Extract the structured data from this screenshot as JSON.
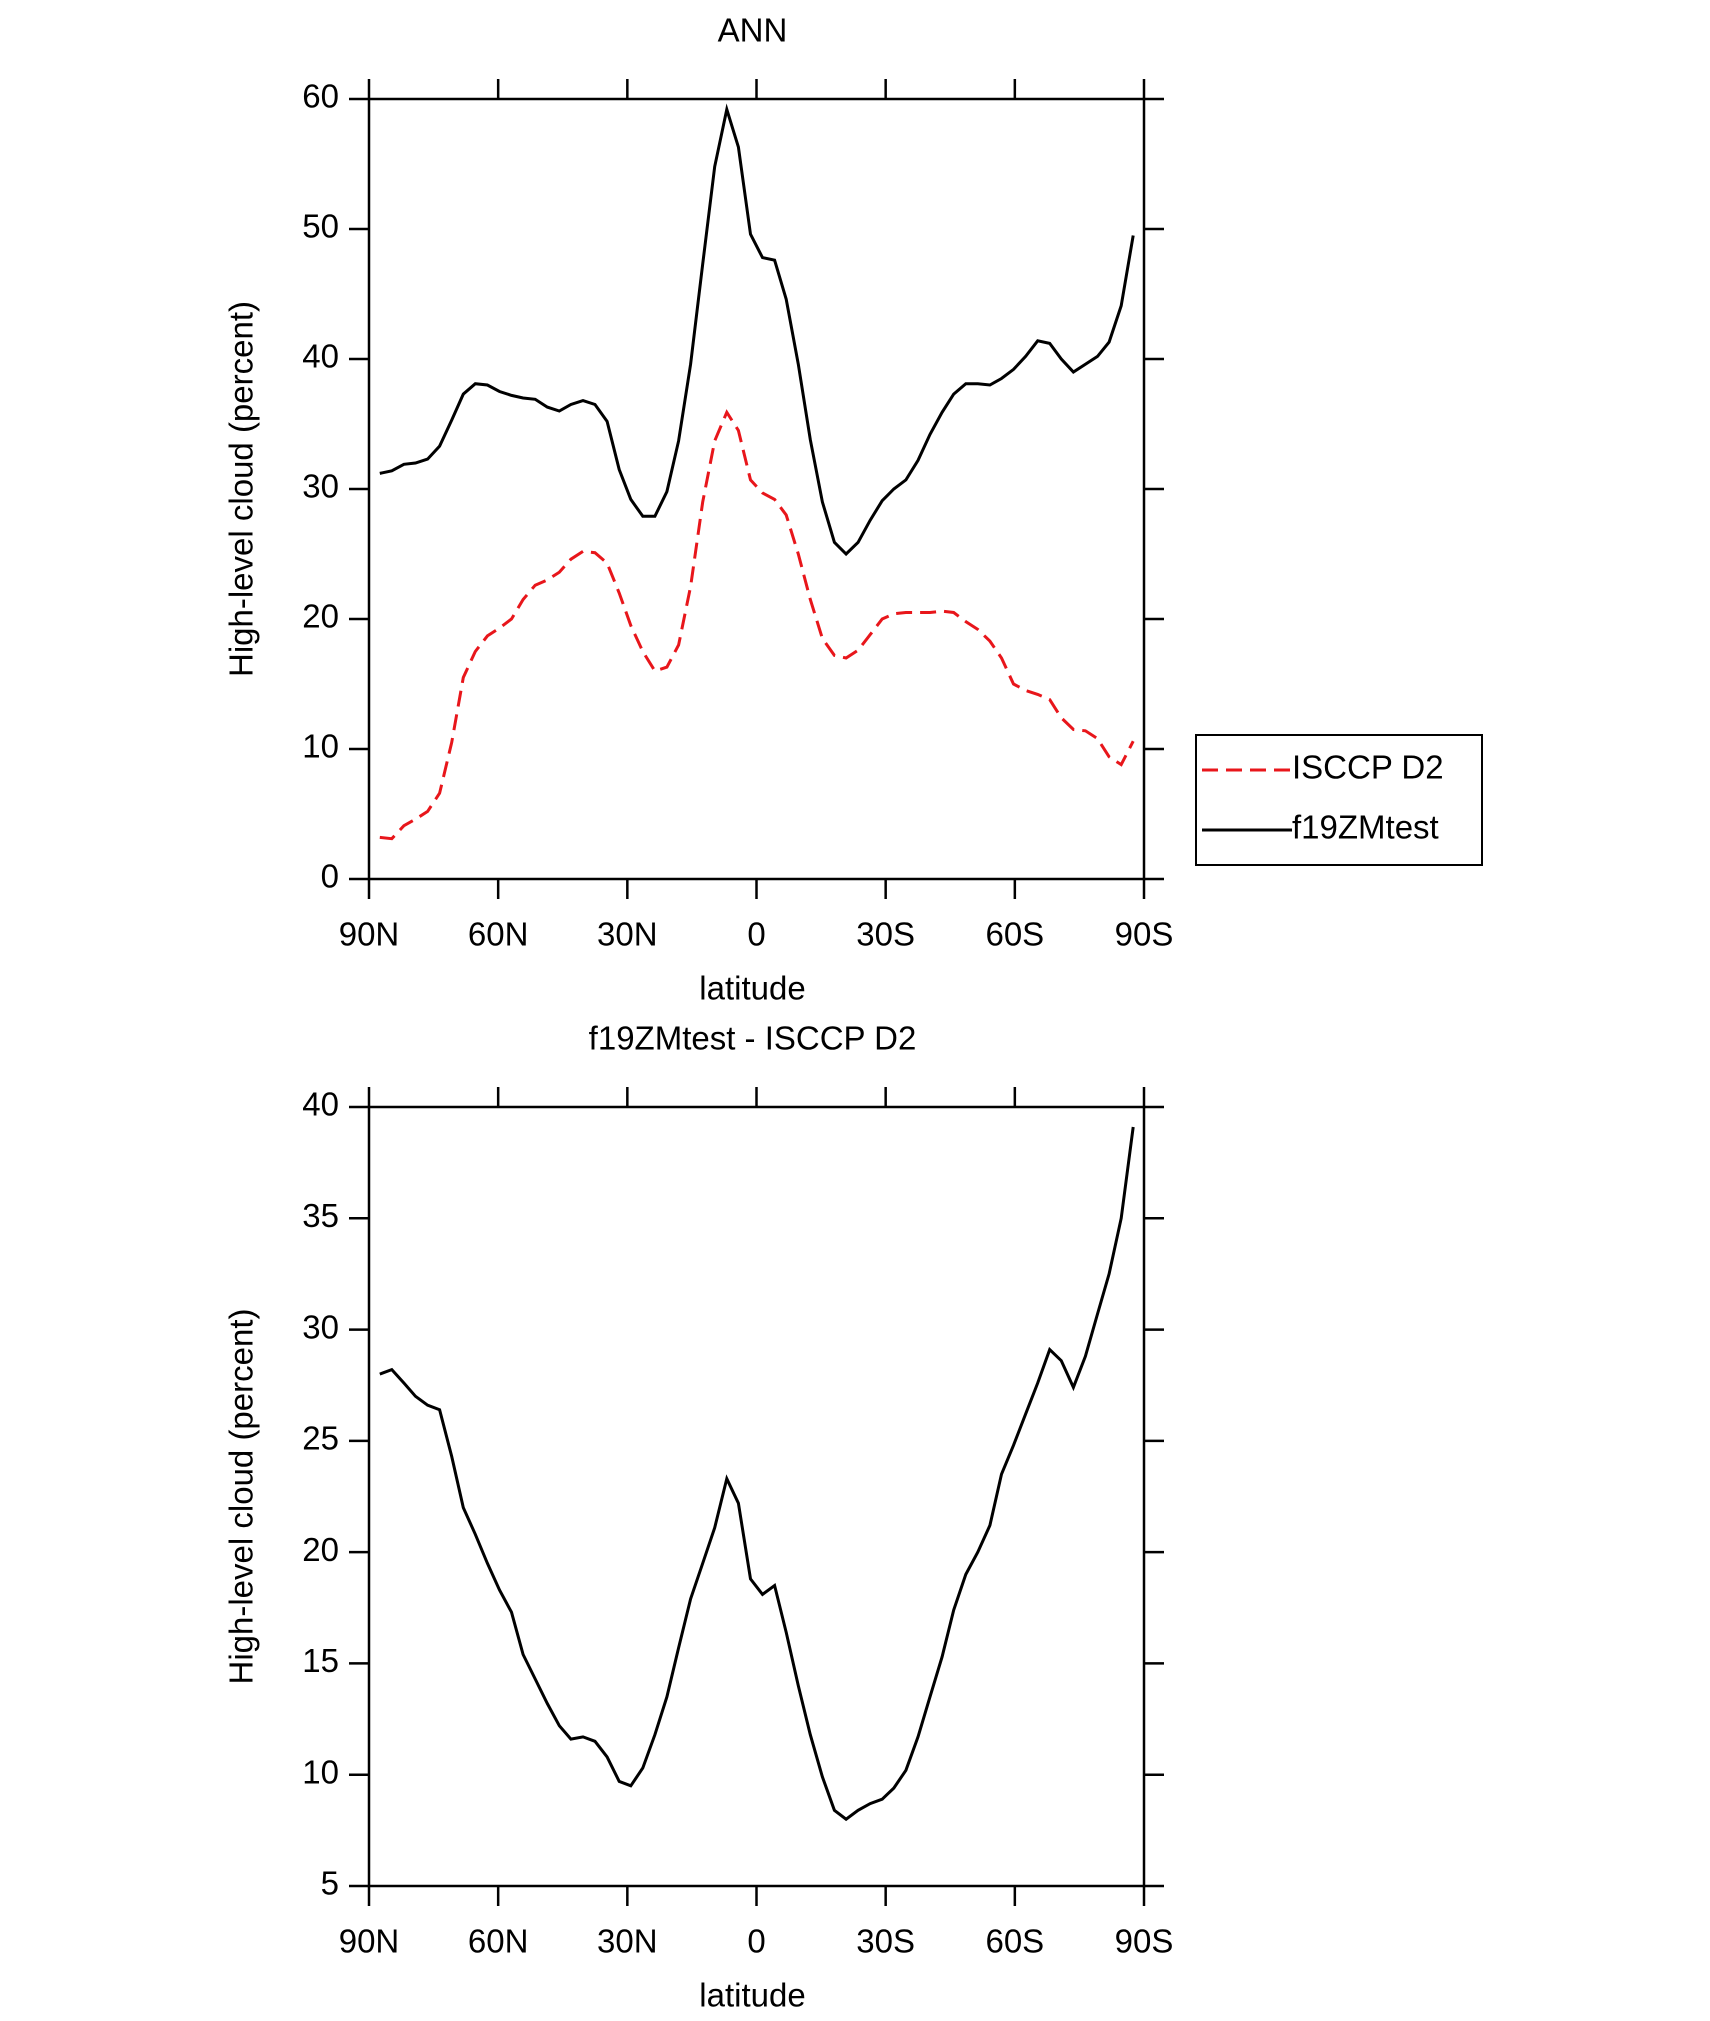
{
  "chart_data": [
    {
      "type": "line",
      "title": "ANN",
      "x_label": "latitude",
      "y_label": "High-level cloud (percent)",
      "x": [
        87.5,
        84.7,
        81.9,
        79.2,
        76.4,
        73.6,
        70.8,
        68.1,
        65.3,
        62.5,
        59.7,
        56.9,
        54.2,
        51.4,
        48.6,
        45.8,
        43.1,
        40.3,
        37.5,
        34.7,
        31.9,
        29.2,
        26.4,
        23.6,
        20.8,
        18.1,
        15.3,
        12.5,
        9.7,
        6.9,
        4.2,
        1.4,
        -1.4,
        -4.2,
        -6.9,
        -9.7,
        -12.5,
        -15.3,
        -18.1,
        -20.8,
        -23.6,
        -26.4,
        -29.2,
        -31.9,
        -34.7,
        -37.5,
        -40.3,
        -43.1,
        -45.8,
        -48.6,
        -51.4,
        -54.2,
        -56.9,
        -59.7,
        -62.5,
        -65.3,
        -68.1,
        -70.8,
        -73.6,
        -76.4,
        -79.2,
        -81.9,
        -84.7,
        -87.5
      ],
      "series": [
        {
          "name": "ISCCP D2",
          "color": "#e8161b",
          "dashed": true,
          "values": [
            3.2,
            3.1,
            4.1,
            4.6,
            5.2,
            6.6,
            10.5,
            15.5,
            17.5,
            18.7,
            19.3,
            20.0,
            21.5,
            22.6,
            23.0,
            23.6,
            24.6,
            25.2,
            25.1,
            24.3,
            22.0,
            19.5,
            17.5,
            16.0,
            16.3,
            18.0,
            22.5,
            29.0,
            33.7,
            35.9,
            34.5,
            30.7,
            29.7,
            29.2,
            28.0,
            25.0,
            21.5,
            18.5,
            17.2,
            17.0,
            17.6,
            18.8,
            20.0,
            20.4,
            20.5,
            20.5,
            20.5,
            20.6,
            20.5,
            19.8,
            19.2,
            18.3,
            17.0,
            15.0,
            14.5,
            14.2,
            13.8,
            12.4,
            11.5,
            11.4,
            10.8,
            9.4,
            8.8,
            10.6
          ]
        },
        {
          "name": "f19ZMtest",
          "color": "#000000",
          "dashed": false,
          "values": [
            31.2,
            31.4,
            31.9,
            32.0,
            32.3,
            33.3,
            35.3,
            37.3,
            38.1,
            38.0,
            37.5,
            37.2,
            37.0,
            36.9,
            36.3,
            36.0,
            36.5,
            36.8,
            36.5,
            35.2,
            31.5,
            29.2,
            27.9,
            27.9,
            29.8,
            33.7,
            39.6,
            47.3,
            54.8,
            59.2,
            56.3,
            49.6,
            47.8,
            47.6,
            44.6,
            39.6,
            33.8,
            29.0,
            25.9,
            25.0,
            25.9,
            27.6,
            29.1,
            30.0,
            30.7,
            32.2,
            34.2,
            35.9,
            37.3,
            38.1,
            38.1,
            38.0,
            38.5,
            39.2,
            40.2,
            41.4,
            41.2,
            40.0,
            39.0,
            39.6,
            40.2,
            41.3,
            44.1,
            49.5
          ]
        }
      ],
      "legend": "right",
      "xlim": [
        90,
        -90
      ],
      "xticks": [
        {
          "value": 90,
          "label": "90N"
        },
        {
          "value": 60,
          "label": "60N"
        },
        {
          "value": 30,
          "label": "30N"
        },
        0,
        {
          "value": -30,
          "label": "30S"
        },
        {
          "value": -60,
          "label": "60S"
        },
        {
          "value": -90,
          "label": "90S"
        }
      ],
      "ylim": [
        0,
        60
      ],
      "yticks": [
        0,
        10,
        20,
        30,
        40,
        50,
        60
      ]
    },
    {
      "type": "line",
      "title": "f19ZMtest - ISCCP D2",
      "x_label": "latitude",
      "y_label": "High-level cloud (percent)",
      "x": [
        87.5,
        84.7,
        81.9,
        79.2,
        76.4,
        73.6,
        70.8,
        68.1,
        65.3,
        62.5,
        59.7,
        56.9,
        54.2,
        51.4,
        48.6,
        45.8,
        43.1,
        40.3,
        37.5,
        34.7,
        31.9,
        29.2,
        26.4,
        23.6,
        20.8,
        18.1,
        15.3,
        12.5,
        9.7,
        6.9,
        4.2,
        1.4,
        -1.4,
        -4.2,
        -6.9,
        -9.7,
        -12.5,
        -15.3,
        -18.1,
        -20.8,
        -23.6,
        -26.4,
        -29.2,
        -31.9,
        -34.7,
        -37.5,
        -40.3,
        -43.1,
        -45.8,
        -48.6,
        -51.4,
        -54.2,
        -56.9,
        -59.7,
        -62.5,
        -65.3,
        -68.1,
        -70.8,
        -73.6,
        -76.4,
        -79.2,
        -81.9,
        -84.7,
        -87.5
      ],
      "series": [
        {
          "color": "#000000",
          "dashed": false,
          "values": [
            28.0,
            28.2,
            27.6,
            27.0,
            26.6,
            26.4,
            24.3,
            22.0,
            20.8,
            19.5,
            18.3,
            17.3,
            15.4,
            14.3,
            13.2,
            12.2,
            11.6,
            11.7,
            11.5,
            10.8,
            9.7,
            9.5,
            10.3,
            11.8,
            13.5,
            15.7,
            17.9,
            19.5,
            21.1,
            23.3,
            22.2,
            18.8,
            18.1,
            18.5,
            16.4,
            14.0,
            11.8,
            9.9,
            8.4,
            8.0,
            8.4,
            8.7,
            8.9,
            9.4,
            10.2,
            11.7,
            13.5,
            15.3,
            17.4,
            19.0,
            20.0,
            21.2,
            23.5,
            24.8,
            26.2,
            27.6,
            29.1,
            28.6,
            27.4,
            28.8,
            30.7,
            32.5,
            35.0,
            39.1
          ]
        }
      ],
      "xlim": [
        90,
        -90
      ],
      "xticks": [
        {
          "value": 90,
          "label": "90N"
        },
        {
          "value": 60,
          "label": "60N"
        },
        {
          "value": 30,
          "label": "30N"
        },
        0,
        {
          "value": -30,
          "label": "30S"
        },
        {
          "value": -60,
          "label": "60S"
        },
        {
          "value": -90,
          "label": "90S"
        }
      ],
      "ylim": [
        5,
        40
      ],
      "yticks": [
        5,
        10,
        15,
        20,
        25,
        30,
        35,
        40
      ]
    }
  ]
}
